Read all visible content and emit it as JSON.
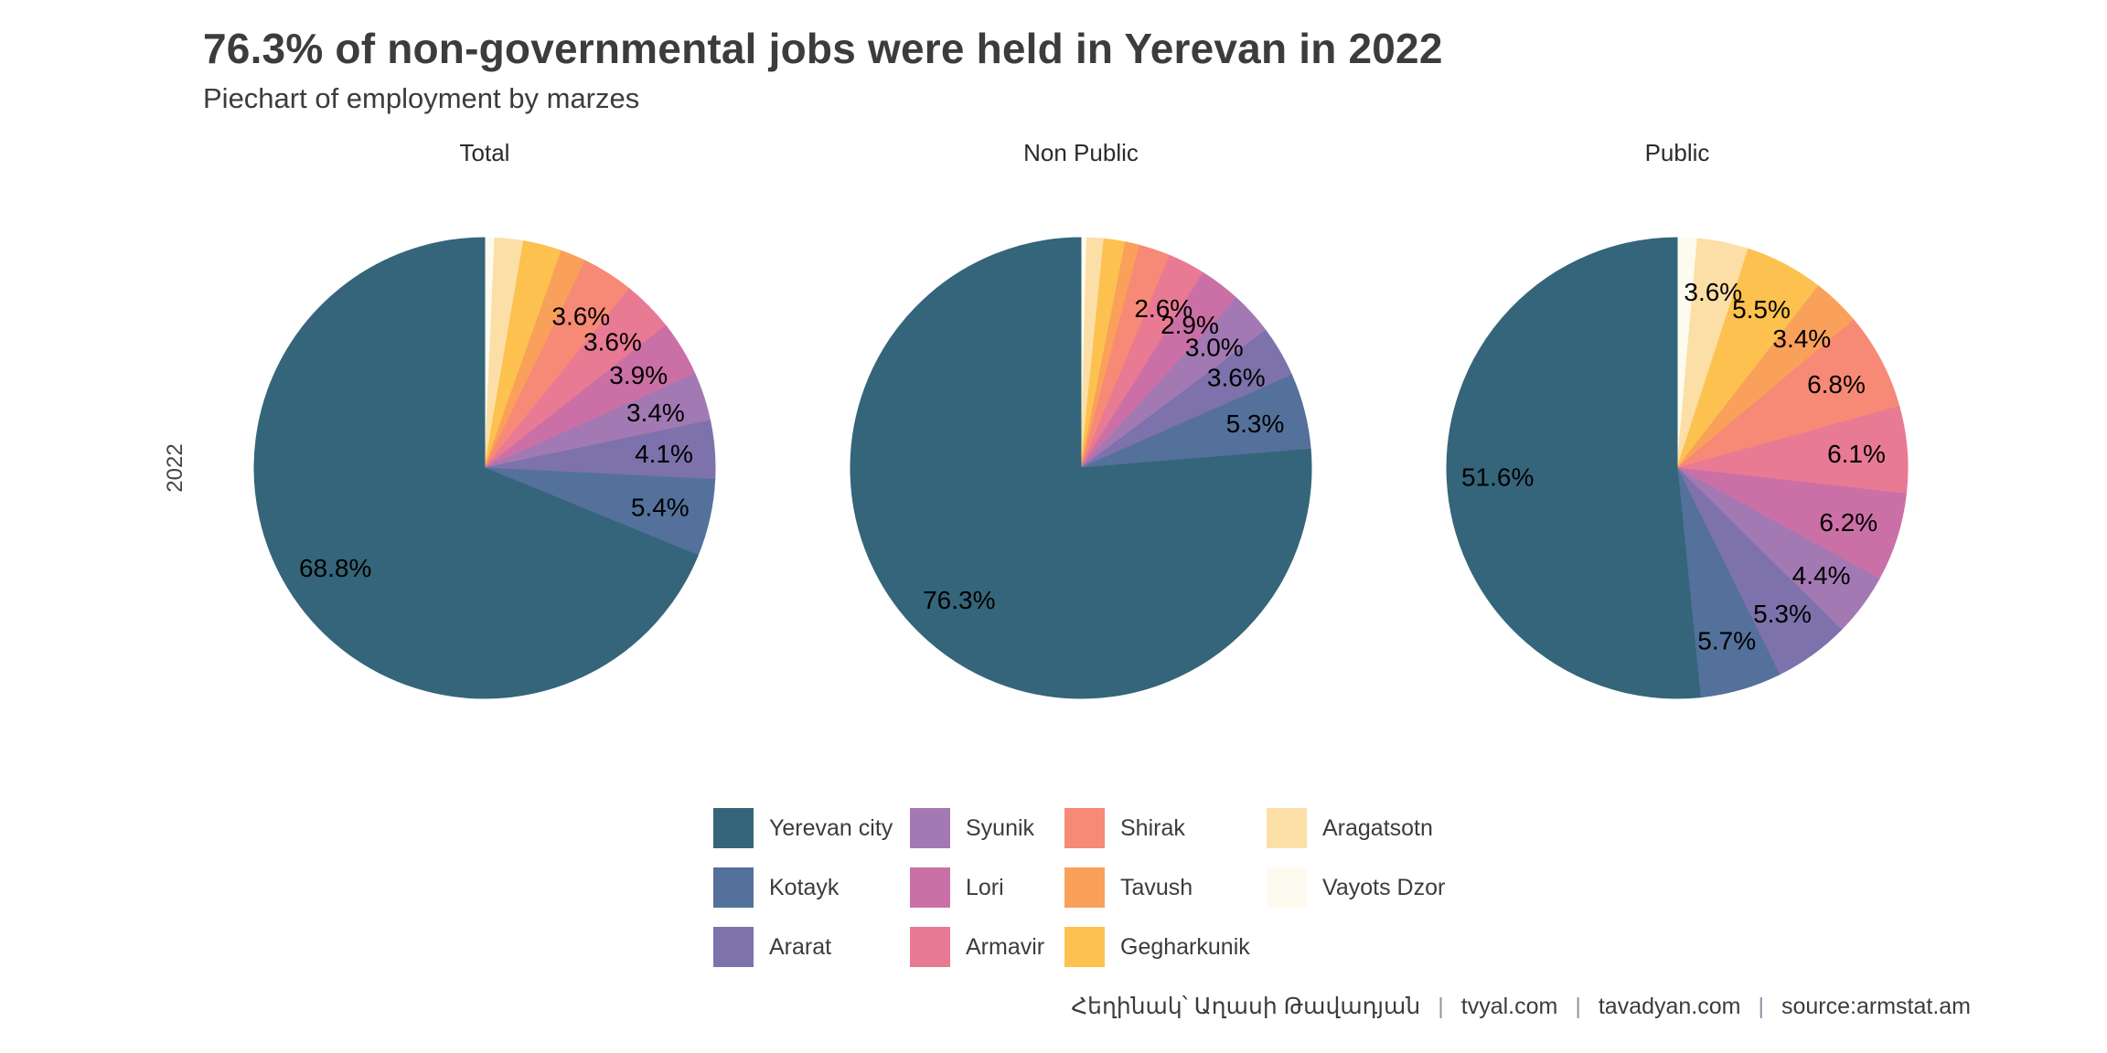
{
  "chart_data": {
    "type": "pie",
    "title": "76.3% of non-governmental jobs were held in Yerevan in 2022",
    "subtitle": "Piechart of employment by marzes",
    "facet_row_label": "2022",
    "legend_position": "bottom",
    "slice_order_clockwise_from_top": [
      "Vayots Dzor",
      "Aragatsotn",
      "Gegharkunik",
      "Tavush",
      "Shirak",
      "Armavir",
      "Lori",
      "Syunik",
      "Ararat",
      "Kotayk",
      "Yerevan city"
    ],
    "colors": {
      "Yerevan city": "#35657a",
      "Kotayk": "#53719b",
      "Ararat": "#7d72ab",
      "Syunik": "#a379b3",
      "Lori": "#cb70a6",
      "Armavir": "#e87a94",
      "Shirak": "#f68a76",
      "Tavush": "#f9a05b",
      "Gegharkunik": "#fdc14f",
      "Aragatsotn": "#fcdfa6",
      "Vayots Dzor": "#fdfbf0"
    },
    "facets": [
      {
        "name": "Total",
        "values": {
          "Yerevan city": 68.8,
          "Kotayk": 5.4,
          "Ararat": 4.1,
          "Syunik": 3.4,
          "Lori": 3.9,
          "Armavir": 3.6,
          "Shirak": 3.6,
          "Tavush": 1.8,
          "Gegharkunik": 2.7,
          "Aragatsotn": 2.0,
          "Vayots Dzor": 0.7
        },
        "shown_labels": {
          "Yerevan city": "68.8%",
          "Kotayk": "5.4%",
          "Ararat": "4.1%",
          "Syunik": "3.4%",
          "Lori": "3.9%",
          "Armavir": "3.6%",
          "Shirak": "3.6%"
        }
      },
      {
        "name": "Non Public",
        "values": {
          "Yerevan city": 76.3,
          "Kotayk": 5.3,
          "Ararat": 3.6,
          "Syunik": 3.0,
          "Lori": 2.9,
          "Armavir": 2.6,
          "Shirak": 2.2,
          "Tavush": 1.0,
          "Gegharkunik": 1.5,
          "Aragatsotn": 1.2,
          "Vayots Dzor": 0.4
        },
        "shown_labels": {
          "Yerevan city": "76.3%",
          "Kotayk": "5.3%",
          "Ararat": "3.6%",
          "Syunik": "3.0%",
          "Lori": "2.9%",
          "Armavir": "2.6%"
        }
      },
      {
        "name": "Public",
        "values": {
          "Yerevan city": 51.6,
          "Kotayk": 5.7,
          "Ararat": 5.3,
          "Syunik": 4.4,
          "Lori": 6.2,
          "Armavir": 6.1,
          "Shirak": 6.8,
          "Tavush": 3.4,
          "Gegharkunik": 5.5,
          "Aragatsotn": 3.6,
          "Vayots Dzor": 1.4
        },
        "shown_labels": {
          "Yerevan city": "51.6%",
          "Kotayk": "5.7%",
          "Ararat": "5.3%",
          "Syunik": "4.4%",
          "Lori": "6.2%",
          "Armavir": "6.1%",
          "Shirak": "6.8%",
          "Tavush": "3.4%",
          "Gegharkunik": "5.5%",
          "Aragatsotn": "3.6%"
        }
      }
    ],
    "legend_entries": [
      "Yerevan city",
      "Kotayk",
      "Ararat",
      "Syunik",
      "Lori",
      "Armavir",
      "Shirak",
      "Tavush",
      "Gegharkunik",
      "Aragatsotn",
      "Vayots Dzor"
    ],
    "footer_parts": [
      "Հեղինակ՝ Աղասի Թավադյան",
      "tvyal.com",
      "tavadyan.com",
      "source:armstat.am"
    ]
  }
}
